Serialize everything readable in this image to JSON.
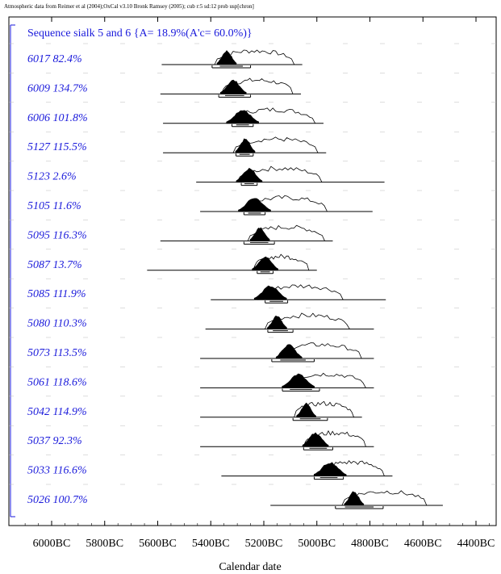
{
  "header": "Atmospheric data from Reimer et al (2004);OxCal v3.10 Bronk Ramsey (2005); cub r:5 sd:12 prob usp[chron]",
  "chart_data": {
    "type": "multiple-plot",
    "title": "Sequence sialk 5 and 6 {A= 18.9%(A'c= 60.0%)}",
    "xlabel": "Calendar date",
    "x_ticks": [
      "6000BC",
      "5800BC",
      "5600BC",
      "5400BC",
      "5200BC",
      "5000BC",
      "4800BC",
      "4600BC",
      "4400BC"
    ],
    "x_tick_values": [
      -6000,
      -5800,
      -5600,
      -5400,
      -5200,
      -5000,
      -4800,
      -4600,
      -4400
    ],
    "xlim": [
      -6100,
      -4350
    ],
    "rows": [
      {
        "label": "6017  82.4%",
        "range": [
          -5585,
          -5055
        ],
        "peak": -5340,
        "posterior_range": [
          -5395,
          -5250
        ]
      },
      {
        "label": "6009  134.7%",
        "range": [
          -5590,
          -5060
        ],
        "peak": -5315,
        "posterior_range": [
          -5370,
          -5250
        ]
      },
      {
        "label": "6006  101.8%",
        "range": [
          -5580,
          -4975
        ],
        "peak": -5280,
        "posterior_range": [
          -5320,
          -5240
        ]
      },
      {
        "label": "5127  115.5%",
        "range": [
          -5580,
          -4965
        ],
        "peak": -5270,
        "posterior_range": [
          -5305,
          -5240
        ]
      },
      {
        "label": "5123    2.6%",
        "range": [
          -5455,
          -4745
        ],
        "peak": -5255,
        "posterior_range": [
          -5285,
          -5225
        ]
      },
      {
        "label": "5105  11.6%",
        "range": [
          -5440,
          -4790
        ],
        "peak": -5235,
        "posterior_range": [
          -5275,
          -5195
        ]
      },
      {
        "label": "5095  116.3%",
        "range": [
          -5590,
          -4940
        ],
        "peak": -5215,
        "posterior_range": [
          -5275,
          -5160
        ]
      },
      {
        "label": "5087  13.7%",
        "range": [
          -5640,
          -5000
        ],
        "peak": -5195,
        "posterior_range": [
          -5225,
          -5165
        ]
      },
      {
        "label": "5085  111.9%",
        "range": [
          -5400,
          -4740
        ],
        "peak": -5175,
        "posterior_range": [
          -5195,
          -5110
        ]
      },
      {
        "label": "5080  110.3%",
        "range": [
          -5420,
          -4785
        ],
        "peak": -5150,
        "posterior_range": [
          -5185,
          -5090
        ]
      },
      {
        "label": "5073  113.5%",
        "range": [
          -5440,
          -4785
        ],
        "peak": -5105,
        "posterior_range": [
          -5170,
          -5010
        ]
      },
      {
        "label": "5061  118.6%",
        "range": [
          -5440,
          -4785
        ],
        "peak": -5070,
        "posterior_range": [
          -5130,
          -4990
        ]
      },
      {
        "label": "5042  114.9%",
        "range": [
          -5440,
          -4830
        ],
        "peak": -5040,
        "posterior_range": [
          -5090,
          -4960
        ]
      },
      {
        "label": "5037  92.3%",
        "range": [
          -5440,
          -4785
        ],
        "peak": -5005,
        "posterior_range": [
          -5050,
          -4940
        ]
      },
      {
        "label": "5033  116.6%",
        "range": [
          -5360,
          -4715
        ],
        "peak": -4950,
        "posterior_range": [
          -5010,
          -4900
        ]
      },
      {
        "label": "5026  100.7%",
        "range": [
          -5175,
          -4525
        ],
        "peak": -4860,
        "posterior_range": [
          -4930,
          -4750
        ]
      }
    ]
  }
}
